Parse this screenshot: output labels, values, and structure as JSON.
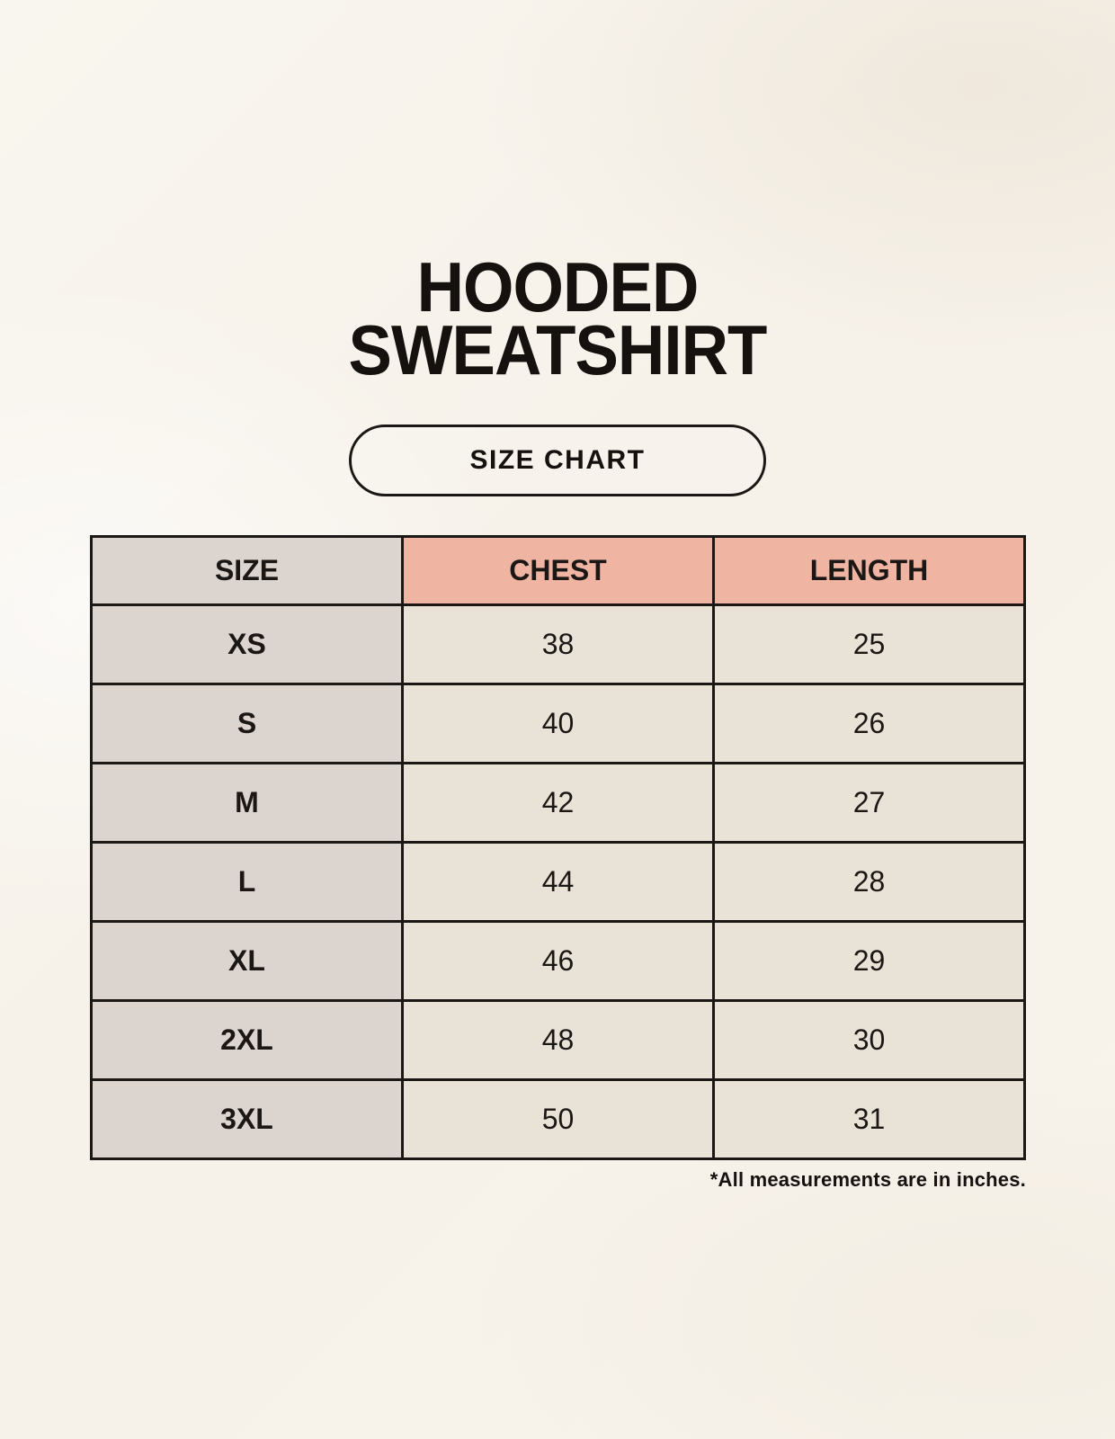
{
  "page": {
    "title_line1": "HOODED",
    "title_line2": "SWEATSHIRT",
    "badge_label": "SIZE CHART",
    "footnote": "*All measurements are in inches."
  },
  "colors": {
    "background": "#f7f3ec",
    "header_accent": "#f0b4a3",
    "size_column": "#dcd4ce",
    "value_cell": "#e9e2d6",
    "border": "#1b1714",
    "text": "#14110e"
  },
  "chart_data": {
    "type": "table",
    "title": "HOODED SWEATSHIRT",
    "subtitle": "SIZE CHART",
    "units": "inches",
    "columns": [
      "SIZE",
      "CHEST",
      "LENGTH"
    ],
    "rows": [
      [
        "XS",
        38,
        25
      ],
      [
        "S",
        40,
        26
      ],
      [
        "M",
        42,
        27
      ],
      [
        "L",
        44,
        28
      ],
      [
        "XL",
        46,
        29
      ],
      [
        "2XL",
        48,
        30
      ],
      [
        "3XL",
        50,
        31
      ]
    ],
    "note": "*All measurements are in inches."
  }
}
